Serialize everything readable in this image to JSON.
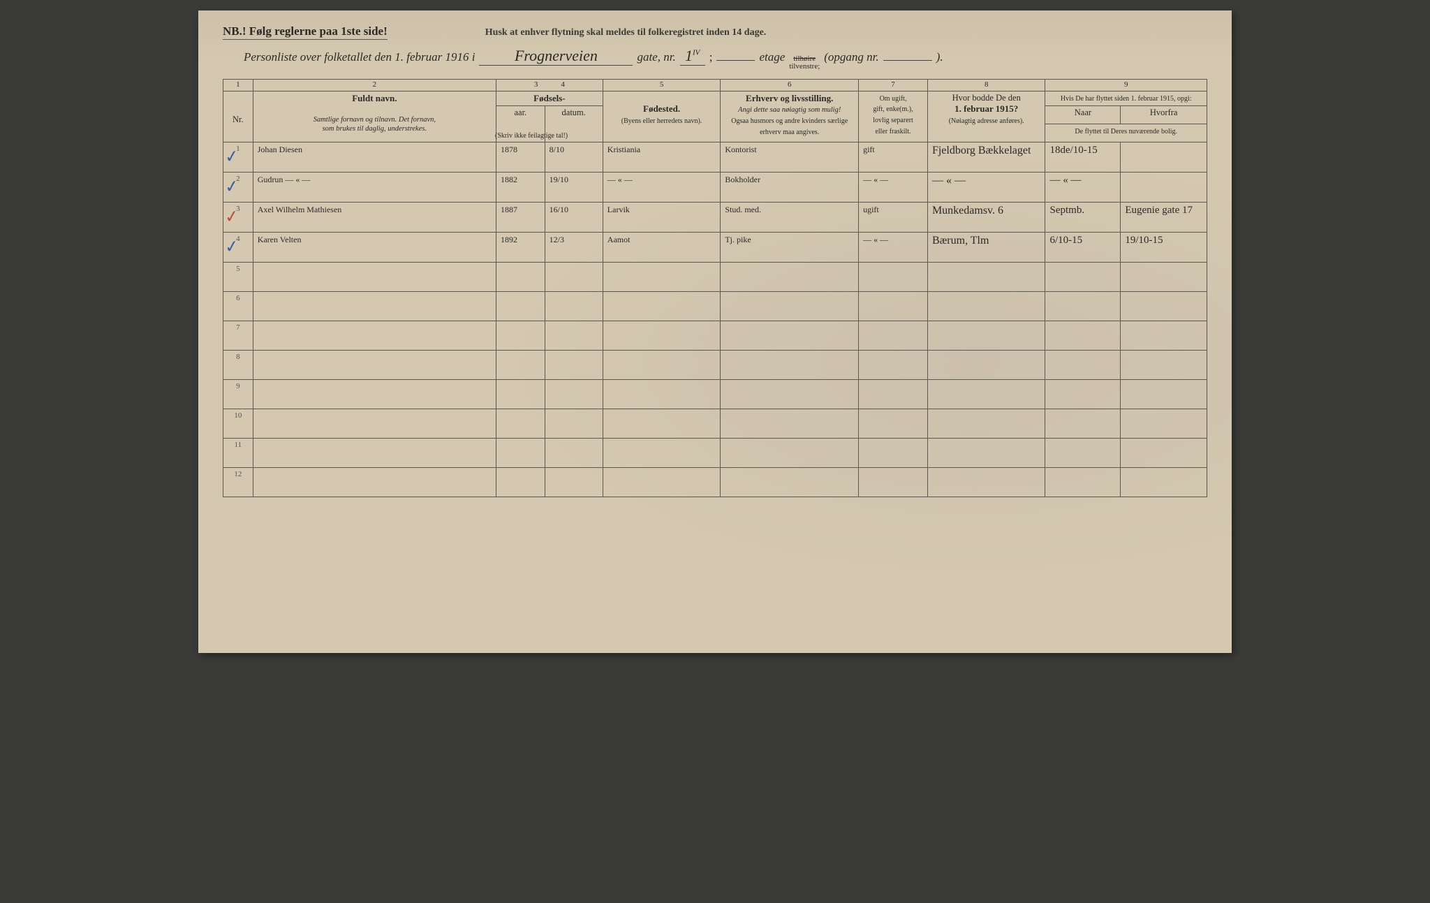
{
  "colors": {
    "paper": "#d4c8b0",
    "ink_print": "#2a2a28",
    "ink_script": "#2b2b28",
    "rule": "#5a5a52",
    "check_blue": "#3a5fa8",
    "check_red": "#c24a3a",
    "background": "#3a3a38"
  },
  "typography": {
    "print_family": "Georgia, 'Times New Roman', serif",
    "script_family": "'Brush Script MT', 'Segoe Script', cursive",
    "title_size_pt": 17,
    "header_size_pt": 12.5,
    "body_script_size_pt": 19
  },
  "header": {
    "nb": "NB.! Følg reglerne paa 1ste side!",
    "reminder": "Husk at enhver flytning skal meldes til folkeregistret inden 14 dage.",
    "title_prefix": "Personliste over folketallet den 1. februar 1916 i",
    "street_hand": "Frognerveien",
    "gate_label": "gate, nr.",
    "gate_nr_hand": "1",
    "gate_nr_sup": "IV",
    "etage_label": "etage",
    "side_strike": "tilhøire",
    "side_under": "tilvenstre;",
    "opgang_label": "(opgang nr.",
    "opgang_close": ")."
  },
  "columns": {
    "numbers": [
      "1",
      "2",
      "3",
      "4",
      "5",
      "6",
      "7",
      "8",
      "9"
    ],
    "c2_main": "Fuldt navn.",
    "c2_sub1": "Samtlige fornavn og tilnavn.  Det fornavn,",
    "c2_sub2": "som brukes til daglig, understrekes.",
    "c34_main": "Fødsels-",
    "c3_sub": "aar.",
    "c4_sub": "datum.",
    "c34_note": "(Skriv ikke feilagtige tal!)",
    "c5_main": "Fødested.",
    "c5_sub": "(Byens eller herredets navn).",
    "c6_main": "Erhverv og livsstilling.",
    "c6_sub1": "Angi dette saa nøiagtig som mulig!",
    "c6_sub2": "Ogsaa husmors og andre kvinders særlige erhverv maa angives.",
    "c7_line1": "Om ugift,",
    "c7_line2": "gift, enke(m.),",
    "c7_line3": "lovlig separert",
    "c7_line4": "eller fraskilt.",
    "c8_main": "Hvor bodde De den",
    "c8_line2": "1. februar 1915?",
    "c8_sub": "(Nøiagtig adresse anføres).",
    "c9_main": "Hvis De har flyttet siden 1. februar 1915, opgi:",
    "c9a": "Naar",
    "c9b": "Hvorfra",
    "c9_sub": "De flyttet til Deres nuværende bolig.",
    "nr_label": "Nr."
  },
  "rows": [
    {
      "nr": "1",
      "mark": "blue",
      "name": "Johan Diesen",
      "year": "1878",
      "date": "8/10",
      "birthplace": "Kristiania",
      "occupation": "Kontorist",
      "marital": "gift",
      "addr1915": "Fjeldborg Bækkelaget",
      "moved_when": "18de/10-15",
      "moved_from": ""
    },
    {
      "nr": "2",
      "mark": "blue",
      "name": "Gudrun   — « —",
      "year": "1882",
      "date": "19/10",
      "birthplace": "— « —",
      "occupation": "Bokholder",
      "marital": "— « —",
      "addr1915": "— « —",
      "moved_when": "— « —",
      "moved_from": ""
    },
    {
      "nr": "3",
      "mark": "red",
      "name": "Axel Wilhelm Mathiesen",
      "year": "1887",
      "date": "16/10",
      "birthplace": "Larvik",
      "occupation": "Stud. med.",
      "marital": "ugift",
      "addr1915": "Munkedamsv. 6",
      "moved_when": "Septmb.",
      "moved_from": "Eugenie gate 17"
    },
    {
      "nr": "4",
      "mark": "blue",
      "name": "Karen Velten",
      "year": "1892",
      "date": "12/3",
      "birthplace": "Aamot",
      "occupation": "Tj. pike",
      "marital": "— « —",
      "addr1915": "Bærum, Tlm",
      "moved_when": "6/10-15",
      "moved_from": "19/10-15"
    }
  ],
  "empty_rows": [
    "5",
    "6",
    "7",
    "8",
    "9",
    "10",
    "11",
    "12"
  ]
}
